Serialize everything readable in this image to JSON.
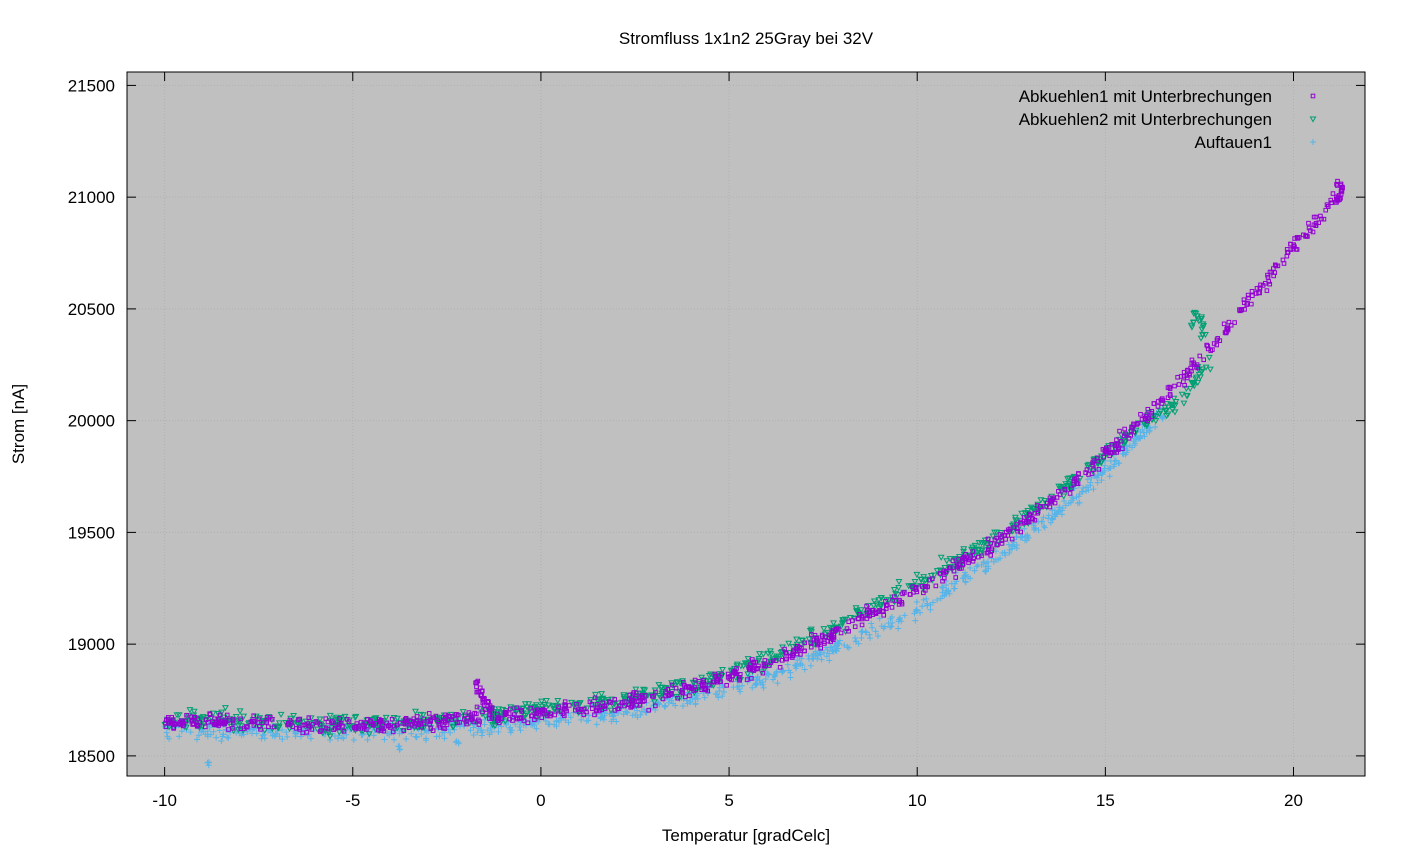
{
  "chart_data": {
    "type": "scatter",
    "title": "Stromfluss 1x1n2 25Gray bei 32V",
    "xlabel": "Temperatur [gradCelc]",
    "ylabel": "Strom [nA]",
    "xlim": [
      -11,
      21.9
    ],
    "ylim": [
      18410,
      21560
    ],
    "xticks": [
      -10,
      -5,
      0,
      5,
      10,
      15,
      20
    ],
    "yticks": [
      18500,
      19000,
      19500,
      20000,
      20500,
      21000,
      21500
    ],
    "xtick_labels": [
      "-10",
      "-5",
      "0",
      "5",
      "10",
      "15",
      "20"
    ],
    "ytick_labels": [
      "18500",
      "19000",
      "19500",
      "20000",
      "20500",
      "21000",
      "21500"
    ],
    "grid": true,
    "legend_position": "top-right",
    "background": "#c0c0c0",
    "series": [
      {
        "name": "Abkuehlen1 mit Unterbrechungen",
        "color": "#9400d3",
        "marker": "square-open",
        "x_range": [
          -10.0,
          21.3
        ],
        "points": [
          [
            -10,
            18650
          ],
          [
            -8,
            18650
          ],
          [
            -6,
            18635
          ],
          [
            -4,
            18640
          ],
          [
            -2,
            18665
          ],
          [
            0,
            18690
          ],
          [
            2,
            18730
          ],
          [
            4,
            18800
          ],
          [
            6,
            18910
          ],
          [
            8,
            19060
          ],
          [
            10,
            19250
          ],
          [
            12,
            19440
          ],
          [
            14,
            19700
          ],
          [
            16,
            20000
          ],
          [
            18,
            20370
          ],
          [
            20,
            20780
          ],
          [
            21.3,
            21030
          ]
        ],
        "spread": 35,
        "extra_points": [
          [
            -1.7,
            18820
          ],
          [
            -1.65,
            18800
          ],
          [
            -1.6,
            18780
          ],
          [
            -1.55,
            18760
          ],
          [
            -1.5,
            18745
          ],
          [
            -1.45,
            18730
          ],
          [
            -1.4,
            18720
          ],
          [
            -1.35,
            18710
          ],
          [
            21.2,
            21060
          ],
          [
            21.25,
            21000
          ],
          [
            21.3,
            21050
          ],
          [
            21.2,
            20990
          ]
        ]
      },
      {
        "name": "Abkuehlen2 mit Unterbrechungen",
        "color": "#009e73",
        "marker": "triangle-down-open",
        "x_range": [
          -10.0,
          17.8
        ],
        "points": [
          [
            -10,
            18660
          ],
          [
            -8,
            18660
          ],
          [
            -6,
            18640
          ],
          [
            -4,
            18645
          ],
          [
            -2,
            18670
          ],
          [
            0,
            18705
          ],
          [
            2,
            18745
          ],
          [
            4,
            18815
          ],
          [
            6,
            18930
          ],
          [
            8,
            19090
          ],
          [
            10,
            19270
          ],
          [
            12,
            19460
          ],
          [
            14,
            19710
          ],
          [
            16,
            19990
          ],
          [
            17,
            20090
          ],
          [
            17.8,
            20280
          ]
        ],
        "spread": 38,
        "extra_points": [
          [
            -1.3,
            18700
          ],
          [
            -1.2,
            18690
          ],
          [
            -1.1,
            18680
          ],
          [
            -1.0,
            18670
          ],
          [
            17.3,
            20430
          ],
          [
            17.4,
            20470
          ],
          [
            17.5,
            20450
          ],
          [
            17.6,
            20420
          ],
          [
            17.6,
            20380
          ]
        ]
      },
      {
        "name": "Auftauen1",
        "color": "#56b4e9",
        "marker": "plus",
        "x_range": [
          -10.0,
          16.6
        ],
        "points": [
          [
            -10,
            18620
          ],
          [
            -8,
            18610
          ],
          [
            -6,
            18600
          ],
          [
            -4,
            18610
          ],
          [
            -2,
            18625
          ],
          [
            0,
            18655
          ],
          [
            2,
            18690
          ],
          [
            4,
            18760
          ],
          [
            6,
            18850
          ],
          [
            8,
            18990
          ],
          [
            10,
            19160
          ],
          [
            12,
            19380
          ],
          [
            14,
            19630
          ],
          [
            16,
            19940
          ],
          [
            16.6,
            20050
          ]
        ],
        "spread": 40,
        "extra_points": [
          [
            -8.8,
            18465
          ],
          [
            -3.8,
            18530
          ],
          [
            -2.2,
            18560
          ]
        ]
      }
    ]
  }
}
